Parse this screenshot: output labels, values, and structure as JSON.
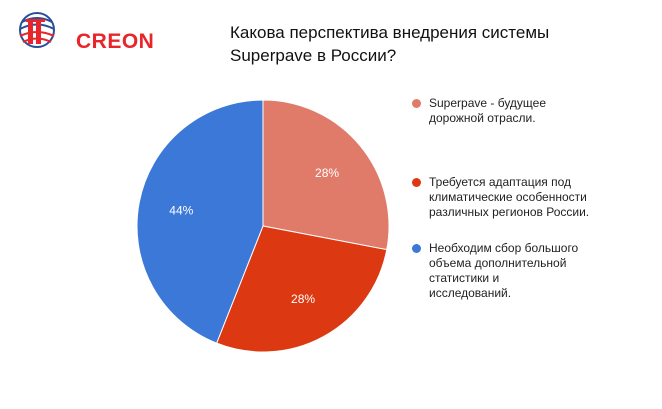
{
  "brand": {
    "name": "CREON"
  },
  "title_lines": [
    "Какова перспектива внедрения системы",
    "Superpave в России?"
  ],
  "colors": {
    "brand_red": "#e8252a",
    "brand_blue": "#2a4f9a"
  },
  "chart_data": {
    "type": "pie",
    "title": "Какова перспектива внедрения системы Superpave в России?",
    "slices": [
      {
        "label": "Superpave - будущее дорожной отрасли.",
        "value": 28,
        "display": "28%",
        "color": "#e07b6a"
      },
      {
        "label": "Требуется адаптация под климатические особенности различных регионов России.",
        "value": 28,
        "display": "28%",
        "color": "#dc3912"
      },
      {
        "label": "Необходим сбор большого объема дополнительной статистики и исследований.",
        "value": 44,
        "display": "44%",
        "color": "#3c78d8"
      }
    ],
    "legend_position": "right"
  },
  "legend": [
    {
      "label": "Superpave - будущее дорожной отрасли.",
      "color": "#e07b6a"
    },
    {
      "label": "Требуется адаптация под климатические особенности различных регионов России.",
      "color": "#dc3912"
    },
    {
      "label": "Необходим сбор большого объема дополнительной статистики и исследований.",
      "color": "#3c78d8"
    }
  ]
}
